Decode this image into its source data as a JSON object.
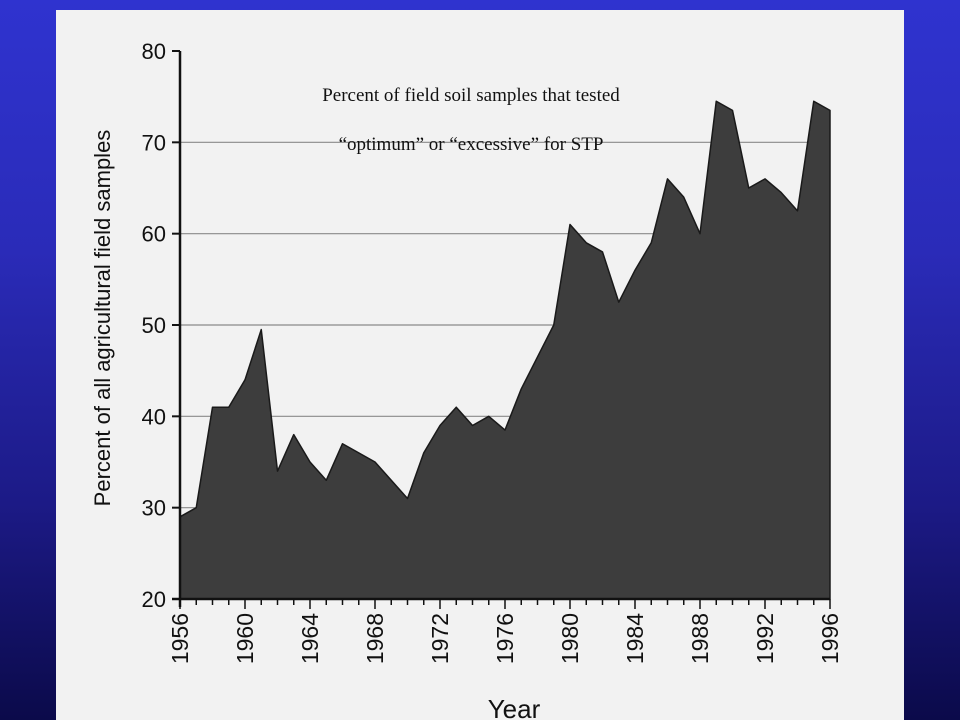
{
  "chart_data": {
    "type": "area",
    "title_lines": [
      "Percent of field soil samples that tested",
      "“optimum” or “excessive” for STP"
    ],
    "xlabel": "Year",
    "ylabel": "Percent of all agricultural field samples",
    "xlim": [
      1956,
      1996
    ],
    "ylim": [
      20,
      80
    ],
    "x_ticks": [
      "1956",
      "1960",
      "1964",
      "1968",
      "1972",
      "1976",
      "1980",
      "1984",
      "1988",
      "1992",
      "1996"
    ],
    "y_ticks": [
      "20",
      "30",
      "40",
      "50",
      "60",
      "70",
      "80"
    ],
    "grid": "horizontal",
    "fill_color": "#3d3d3d",
    "x": [
      1956,
      1957,
      1958,
      1959,
      1960,
      1961,
      1962,
      1963,
      1964,
      1965,
      1966,
      1967,
      1968,
      1969,
      1970,
      1971,
      1972,
      1973,
      1974,
      1975,
      1976,
      1977,
      1978,
      1979,
      1980,
      1981,
      1982,
      1983,
      1984,
      1985,
      1986,
      1987,
      1988,
      1989,
      1990,
      1991,
      1992,
      1993,
      1994,
      1995,
      1996
    ],
    "values": [
      29,
      30,
      41,
      41,
      44,
      49.5,
      34,
      38,
      35,
      33,
      37,
      36,
      35,
      33,
      31,
      36,
      39,
      41,
      39,
      40,
      38.5,
      43,
      46.5,
      50,
      61,
      59,
      58,
      52.5,
      56,
      59,
      66,
      64,
      60,
      74.5,
      73.5,
      65,
      66,
      64.5,
      62.5,
      74.5,
      73.5
    ]
  }
}
